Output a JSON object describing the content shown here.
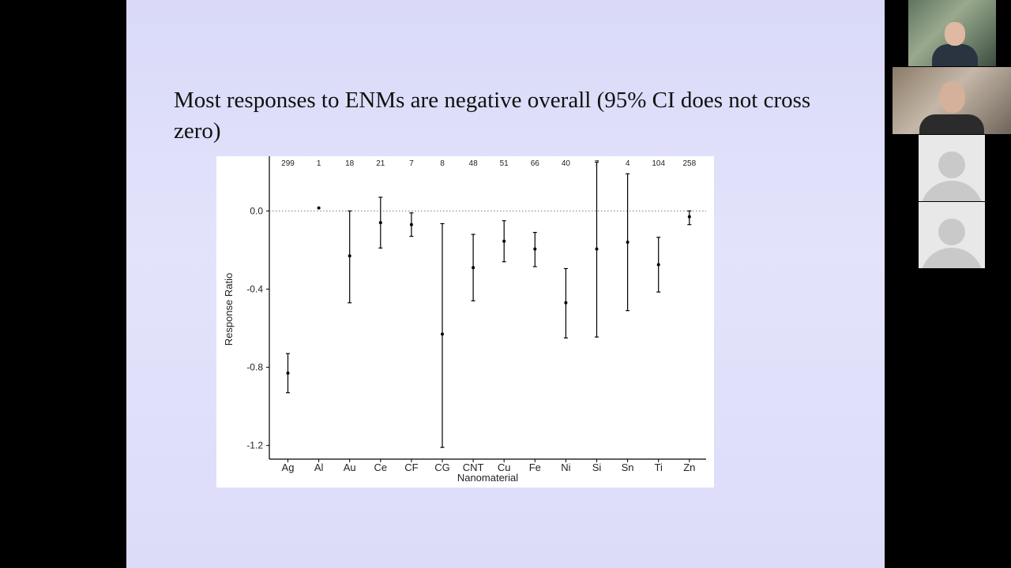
{
  "slide": {
    "title": "Most responses to ENMs are negative overall (95% CI does not cross zero)"
  },
  "chart_data": {
    "type": "errorbar",
    "xlabel": "Nanomaterial",
    "ylabel": "Response Ratio",
    "categories": [
      "Ag",
      "Al",
      "Au",
      "Ce",
      "CF",
      "CG",
      "CNT",
      "Cu",
      "Fe",
      "Ni",
      "Si",
      "Sn",
      "Ti",
      "Zn"
    ],
    "sample_sizes": [
      "299",
      "1",
      "18",
      "21",
      "7",
      "8",
      "48",
      "51",
      "66",
      "40",
      "7",
      "4",
      "104",
      "258"
    ],
    "estimates": [
      -0.83,
      0.015,
      -0.23,
      -0.06,
      -0.07,
      -0.63,
      -0.29,
      -0.155,
      -0.195,
      -0.47,
      -0.195,
      -0.16,
      -0.275,
      -0.03
    ],
    "ci_lower": [
      -0.93,
      null,
      -0.47,
      -0.19,
      -0.13,
      -1.21,
      -0.46,
      -0.26,
      -0.285,
      -0.65,
      -0.645,
      -0.51,
      -0.415,
      -0.07
    ],
    "ci_upper": [
      -0.73,
      null,
      0.0,
      0.07,
      -0.01,
      -0.065,
      -0.12,
      -0.05,
      -0.11,
      -0.295,
      0.25,
      0.19,
      -0.135,
      0.0
    ],
    "yticks": [
      "0.0",
      "-0.4",
      "-0.8",
      "-1.2"
    ],
    "ylim": [
      -1.27,
      0.28
    ],
    "reference_line": 0.0,
    "grid": false
  },
  "sidebar": {
    "tiles": [
      {
        "kind": "video"
      },
      {
        "kind": "video"
      },
      {
        "kind": "avatar"
      },
      {
        "kind": "avatar"
      }
    ]
  }
}
